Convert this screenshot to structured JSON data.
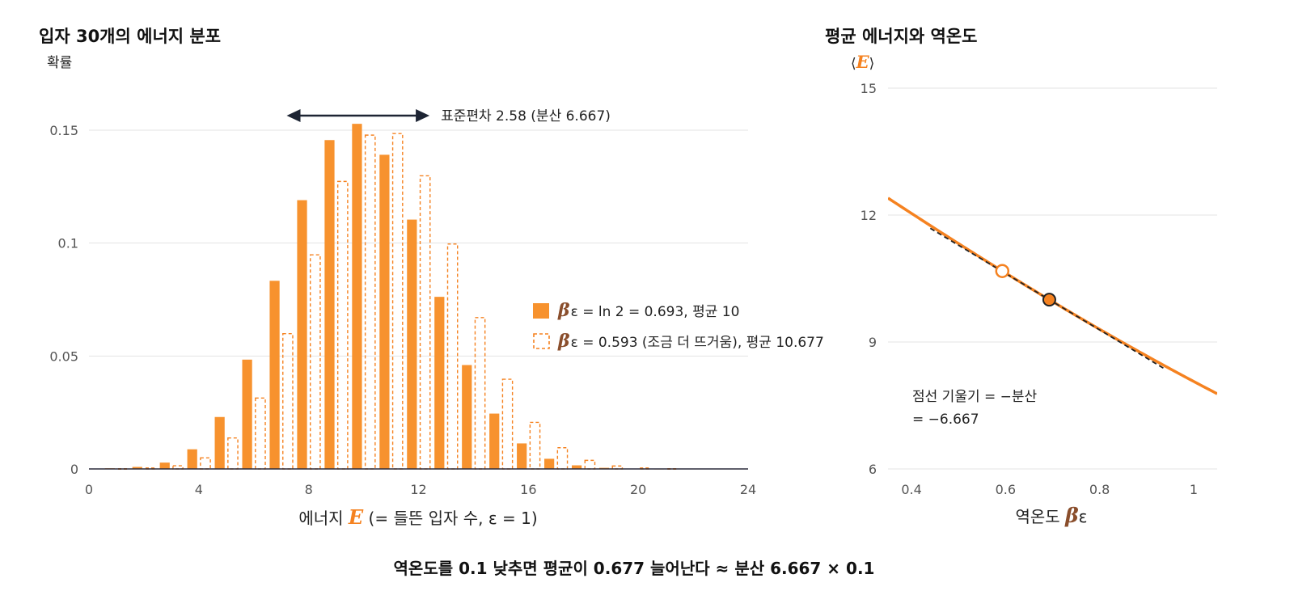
{
  "colors": {
    "orange": "#f7922e",
    "orange_dark": "#f58220",
    "symbol_brown": "#8a4e2c",
    "grid": "#e3e3e3",
    "axis": "#2a2a3a",
    "dashed_line": "#222222",
    "arrow": "#1d2433"
  },
  "footer": "역온도를 0.1 낮추면 평균이 0.677 늘어난다 ≈ 분산 6.667 × 0.1",
  "chart_data": [
    {
      "type": "bar",
      "title": "입자 30개의 에너지 분포",
      "ylabel": "확률",
      "xlabel": {
        "prefix": "에너지 ",
        "symbol": "E",
        "suffix": " (= 들뜬 입자 수, ε = 1)"
      },
      "xlim": [
        0,
        24
      ],
      "ylim": [
        0,
        0.155
      ],
      "xticks": [
        0,
        4,
        8,
        12,
        16,
        20,
        24
      ],
      "xtick_labels": [
        "0",
        "4",
        "8",
        "12",
        "16",
        "20",
        "24"
      ],
      "yticks": [
        0,
        0.05,
        0.1,
        0.15
      ],
      "ytick_labels": [
        "0",
        "0.05",
        "0.1",
        "0.15"
      ],
      "grid": "horizontal",
      "legend_position": "center-right",
      "x": [
        1,
        2,
        3,
        4,
        5,
        6,
        7,
        8,
        9,
        10,
        11,
        12,
        13,
        14,
        15,
        16,
        17,
        18,
        19,
        20,
        21
      ],
      "series": [
        {
          "style": "filled",
          "symbol": "β",
          "name": "ε = ln 2 = 0.693, 평균 10",
          "values": [
            0.0003,
            0.0009,
            0.0028,
            0.0087,
            0.023,
            0.0484,
            0.0833,
            0.119,
            0.1456,
            0.1528,
            0.1391,
            0.1104,
            0.0762,
            0.046,
            0.0245,
            0.0113,
            0.0045,
            0.0016,
            0.0005,
            0.0001,
            0.0
          ]
        },
        {
          "style": "dashed",
          "symbol": "β",
          "name": "ε = 0.593 (조금 더 뜨거움), 평균 10.677",
          "values": [
            0.0001,
            0.0004,
            0.0014,
            0.0049,
            0.0137,
            0.0314,
            0.0599,
            0.0948,
            0.1273,
            0.1478,
            0.1485,
            0.1298,
            0.0996,
            0.067,
            0.0397,
            0.0206,
            0.0094,
            0.0038,
            0.0013,
            0.0004,
            0.0001
          ]
        }
      ],
      "annotation": {
        "text": "표준편차 2.58 (분산 6.667)",
        "from_x": 7.2,
        "to_x": 12.4,
        "y": 0.158
      }
    },
    {
      "type": "line",
      "title": "평균 에너지와 역온도",
      "ylabel": {
        "prefix": "⟨",
        "symbol": "E",
        "suffix": "⟩"
      },
      "xlabel": {
        "prefix": "역온도 ",
        "symbol": "β",
        "suffix": "ε"
      },
      "xlim": [
        0.35,
        1.05
      ],
      "ylim": [
        6,
        15
      ],
      "xticks": [
        0.4,
        0.6,
        0.8,
        1
      ],
      "xtick_labels": [
        "0.4",
        "0.6",
        "0.8",
        "1"
      ],
      "yticks": [
        6,
        9,
        12,
        15
      ],
      "ytick_labels": [
        "6",
        "9",
        "12",
        "15"
      ],
      "grid": "horizontal",
      "n_particles": 30,
      "curve_x_range": [
        0.35,
        1.05
      ],
      "tangent": {
        "x_range": [
          0.44,
          0.94
        ],
        "at": [
          0.693,
          10.0
        ],
        "slope": -6.667
      },
      "points": [
        {
          "x": 0.593,
          "y": 10.677,
          "style": "open"
        },
        {
          "x": 0.693,
          "y": 10.0,
          "style": "filled"
        }
      ],
      "annotation": {
        "lines": [
          "점선 기울기 = −분산",
          "= −6.667"
        ]
      }
    }
  ]
}
